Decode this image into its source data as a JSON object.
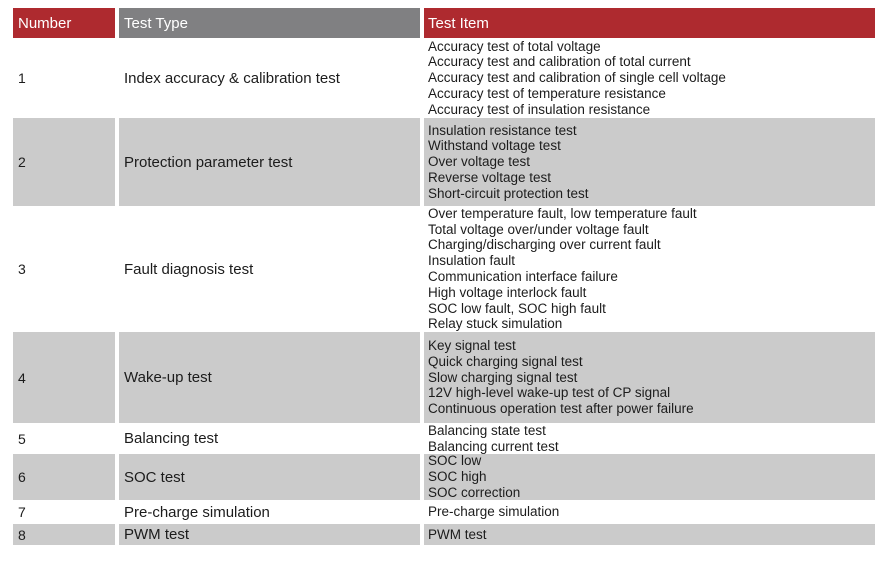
{
  "table": {
    "colors": {
      "header_red": "#ae2a2f",
      "header_gray": "#808082",
      "row_gray": "#cbcbcb",
      "text": "#1c1c1c"
    },
    "headers": {
      "number": "Number",
      "test_type": "Test Type",
      "test_item": "Test Item"
    },
    "rows": [
      {
        "number": "1",
        "test_type": "Index accuracy & calibration test",
        "items": [
          "Accuracy test of total voltage",
          "Accuracy test and calibration of total current",
          "Accuracy test and calibration of single cell voltage",
          "Accuracy test of temperature resistance",
          "Accuracy test of insulation resistance"
        ]
      },
      {
        "number": "2",
        "test_type": "Protection parameter test",
        "items": [
          "Insulation resistance test",
          "Withstand voltage test",
          "Over voltage test",
          "Reverse voltage test",
          "Short-circuit protection test"
        ]
      },
      {
        "number": "3",
        "test_type": "Fault diagnosis test",
        "items": [
          "Over temperature fault, low temperature fault",
          "Total voltage over/under voltage fault",
          "Charging/discharging over current fault",
          "Insulation fault",
          "Communication interface failure",
          "High voltage interlock fault",
          "SOC low fault, SOC high fault",
          "Relay stuck simulation"
        ]
      },
      {
        "number": "4",
        "test_type": "Wake-up test",
        "items": [
          "Key signal test",
          "Quick charging signal test",
          "Slow charging signal test",
          "12V high-level wake-up test of CP signal",
          "Continuous operation test after power failure"
        ]
      },
      {
        "number": "5",
        "test_type": "Balancing test",
        "items": [
          "Balancing state test",
          "Balancing current test"
        ]
      },
      {
        "number": "6",
        "test_type": "SOC test",
        "items": [
          "SOC low",
          "SOC high",
          "SOC correction"
        ]
      },
      {
        "number": "7",
        "test_type": "Pre-charge simulation",
        "items": [
          "Pre-charge simulation"
        ]
      },
      {
        "number": "8",
        "test_type": "PWM test",
        "items": [
          "PWM test"
        ]
      }
    ]
  }
}
